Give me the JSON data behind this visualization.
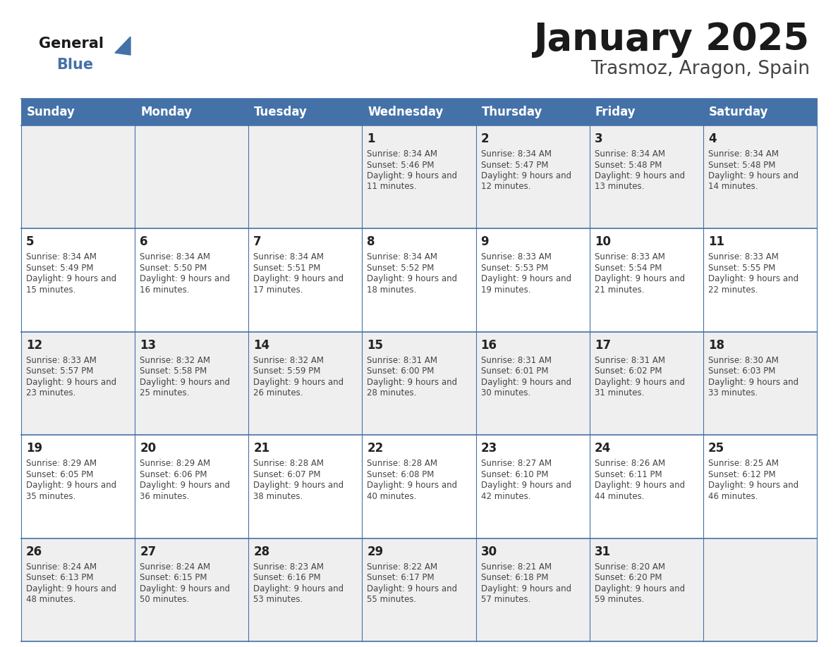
{
  "title": "January 2025",
  "subtitle": "Trasmoz, Aragon, Spain",
  "days_of_week": [
    "Sunday",
    "Monday",
    "Tuesday",
    "Wednesday",
    "Thursday",
    "Friday",
    "Saturday"
  ],
  "header_bg": "#4472A8",
  "header_text": "#FFFFFF",
  "row_bg_odd": "#EFEFEF",
  "row_bg_even": "#FFFFFF",
  "cell_text_color": "#444444",
  "day_number_color": "#222222",
  "title_color": "#1a1a1a",
  "subtitle_color": "#444444",
  "grid_line_color": "#4472A8",
  "logo_general_color": "#1a1a1a",
  "logo_blue_color": "#4472A8",
  "logo_triangle_color": "#4472A8",
  "calendar_data": [
    [
      {
        "day": null
      },
      {
        "day": null
      },
      {
        "day": null
      },
      {
        "day": 1,
        "sunrise": "8:34 AM",
        "sunset": "5:46 PM",
        "daylight": "9 hours and 11 minutes"
      },
      {
        "day": 2,
        "sunrise": "8:34 AM",
        "sunset": "5:47 PM",
        "daylight": "9 hours and 12 minutes"
      },
      {
        "day": 3,
        "sunrise": "8:34 AM",
        "sunset": "5:48 PM",
        "daylight": "9 hours and 13 minutes"
      },
      {
        "day": 4,
        "sunrise": "8:34 AM",
        "sunset": "5:48 PM",
        "daylight": "9 hours and 14 minutes"
      }
    ],
    [
      {
        "day": 5,
        "sunrise": "8:34 AM",
        "sunset": "5:49 PM",
        "daylight": "9 hours and 15 minutes"
      },
      {
        "day": 6,
        "sunrise": "8:34 AM",
        "sunset": "5:50 PM",
        "daylight": "9 hours and 16 minutes"
      },
      {
        "day": 7,
        "sunrise": "8:34 AM",
        "sunset": "5:51 PM",
        "daylight": "9 hours and 17 minutes"
      },
      {
        "day": 8,
        "sunrise": "8:34 AM",
        "sunset": "5:52 PM",
        "daylight": "9 hours and 18 minutes"
      },
      {
        "day": 9,
        "sunrise": "8:33 AM",
        "sunset": "5:53 PM",
        "daylight": "9 hours and 19 minutes"
      },
      {
        "day": 10,
        "sunrise": "8:33 AM",
        "sunset": "5:54 PM",
        "daylight": "9 hours and 21 minutes"
      },
      {
        "day": 11,
        "sunrise": "8:33 AM",
        "sunset": "5:55 PM",
        "daylight": "9 hours and 22 minutes"
      }
    ],
    [
      {
        "day": 12,
        "sunrise": "8:33 AM",
        "sunset": "5:57 PM",
        "daylight": "9 hours and 23 minutes"
      },
      {
        "day": 13,
        "sunrise": "8:32 AM",
        "sunset": "5:58 PM",
        "daylight": "9 hours and 25 minutes"
      },
      {
        "day": 14,
        "sunrise": "8:32 AM",
        "sunset": "5:59 PM",
        "daylight": "9 hours and 26 minutes"
      },
      {
        "day": 15,
        "sunrise": "8:31 AM",
        "sunset": "6:00 PM",
        "daylight": "9 hours and 28 minutes"
      },
      {
        "day": 16,
        "sunrise": "8:31 AM",
        "sunset": "6:01 PM",
        "daylight": "9 hours and 30 minutes"
      },
      {
        "day": 17,
        "sunrise": "8:31 AM",
        "sunset": "6:02 PM",
        "daylight": "9 hours and 31 minutes"
      },
      {
        "day": 18,
        "sunrise": "8:30 AM",
        "sunset": "6:03 PM",
        "daylight": "9 hours and 33 minutes"
      }
    ],
    [
      {
        "day": 19,
        "sunrise": "8:29 AM",
        "sunset": "6:05 PM",
        "daylight": "9 hours and 35 minutes"
      },
      {
        "day": 20,
        "sunrise": "8:29 AM",
        "sunset": "6:06 PM",
        "daylight": "9 hours and 36 minutes"
      },
      {
        "day": 21,
        "sunrise": "8:28 AM",
        "sunset": "6:07 PM",
        "daylight": "9 hours and 38 minutes"
      },
      {
        "day": 22,
        "sunrise": "8:28 AM",
        "sunset": "6:08 PM",
        "daylight": "9 hours and 40 minutes"
      },
      {
        "day": 23,
        "sunrise": "8:27 AM",
        "sunset": "6:10 PM",
        "daylight": "9 hours and 42 minutes"
      },
      {
        "day": 24,
        "sunrise": "8:26 AM",
        "sunset": "6:11 PM",
        "daylight": "9 hours and 44 minutes"
      },
      {
        "day": 25,
        "sunrise": "8:25 AM",
        "sunset": "6:12 PM",
        "daylight": "9 hours and 46 minutes"
      }
    ],
    [
      {
        "day": 26,
        "sunrise": "8:24 AM",
        "sunset": "6:13 PM",
        "daylight": "9 hours and 48 minutes"
      },
      {
        "day": 27,
        "sunrise": "8:24 AM",
        "sunset": "6:15 PM",
        "daylight": "9 hours and 50 minutes"
      },
      {
        "day": 28,
        "sunrise": "8:23 AM",
        "sunset": "6:16 PM",
        "daylight": "9 hours and 53 minutes"
      },
      {
        "day": 29,
        "sunrise": "8:22 AM",
        "sunset": "6:17 PM",
        "daylight": "9 hours and 55 minutes"
      },
      {
        "day": 30,
        "sunrise": "8:21 AM",
        "sunset": "6:18 PM",
        "daylight": "9 hours and 57 minutes"
      },
      {
        "day": 31,
        "sunrise": "8:20 AM",
        "sunset": "6:20 PM",
        "daylight": "9 hours and 59 minutes"
      },
      {
        "day": null
      }
    ]
  ]
}
